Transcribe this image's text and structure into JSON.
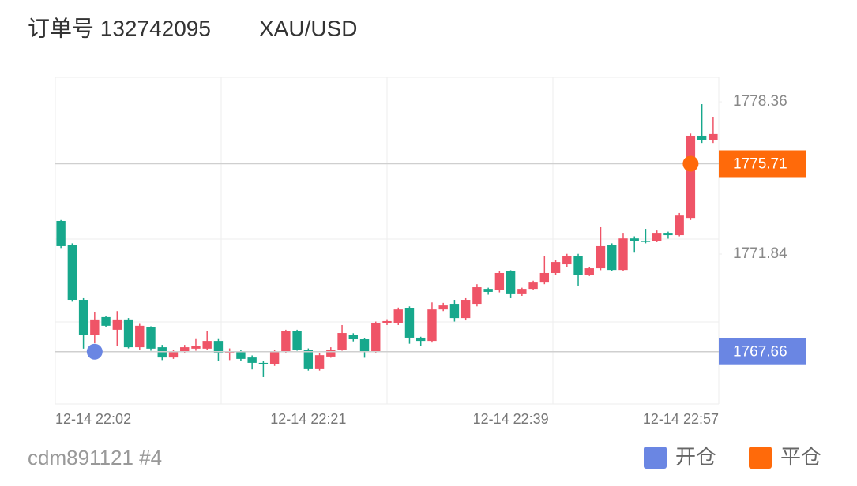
{
  "chart_data": {
    "type": "candlestick",
    "title": "订单号 132742095",
    "symbol": "XAU/USD",
    "footer": "cdm891121 #4",
    "categories": [
      "12-14 22:02",
      null,
      null,
      null,
      null,
      null,
      null,
      null,
      null,
      null,
      null,
      null,
      null,
      null,
      null,
      null,
      null,
      null,
      null,
      null,
      null,
      null,
      "12-14 22:21",
      null,
      null,
      null,
      null,
      null,
      null,
      null,
      null,
      null,
      null,
      null,
      null,
      null,
      null,
      null,
      null,
      null,
      "12-14 22:39",
      null,
      null,
      null,
      null,
      null,
      null,
      null,
      null,
      null,
      null,
      null,
      null,
      null,
      null,
      null,
      null,
      null,
      "12-14 22:57"
    ],
    "open": [
      1773.26,
      1772.24,
      1769.88,
      1768.36,
      1769.14,
      1768.6,
      1769.04,
      1767.85,
      1768.7,
      1767.85,
      1767.41,
      1767.68,
      1767.79,
      1767.79,
      1768.12,
      1767.62,
      1767.68,
      1767.41,
      1767.18,
      1767.11,
      1767.68,
      1768.53,
      1767.75,
      1766.91,
      1767.45,
      1767.75,
      1768.36,
      1768.19,
      1767.68,
      1768.87,
      1768.87,
      1769.54,
      1768.26,
      1768.12,
      1769.47,
      1769.71,
      1769.1,
      1769.71,
      1770.35,
      1770.29,
      1771.1,
      1770.12,
      1770.35,
      1770.62,
      1771.03,
      1771.4,
      1771.77,
      1770.96,
      1771.23,
      1772.24,
      1771.16,
      1772.51,
      1772.41,
      1772.41,
      1772.75,
      1772.65,
      1773.39,
      1776.91,
      1776.71
    ],
    "high": [
      1773.3,
      1772.3,
      1769.95,
      1769.37,
      1769.2,
      1769.4,
      1769.1,
      1768.85,
      1768.75,
      1767.95,
      1767.75,
      1767.95,
      1768.2,
      1768.53,
      1768.2,
      1767.8,
      1767.75,
      1767.5,
      1767.25,
      1767.75,
      1768.6,
      1768.6,
      1767.8,
      1767.6,
      1767.85,
      1768.8,
      1768.45,
      1768.25,
      1768.95,
      1769.05,
      1769.55,
      1769.6,
      1768.3,
      1769.77,
      1769.75,
      1769.88,
      1769.95,
      1770.55,
      1770.4,
      1771.1,
      1771.15,
      1770.4,
      1770.7,
      1771.74,
      1771.6,
      1771.85,
      1771.85,
      1771.3,
      1772.99,
      1772.3,
      1772.75,
      1772.6,
      1772.92,
      1772.85,
      1772.8,
      1773.6,
      1777.0,
      1778.26,
      1777.72
    ],
    "low": [
      1772.1,
      1769.8,
      1767.79,
      1768.02,
      1768.7,
      1767.9,
      1767.8,
      1767.75,
      1767.7,
      1767.3,
      1767.35,
      1767.6,
      1767.7,
      1767.75,
      1767.25,
      1767.3,
      1767.25,
      1766.9,
      1766.57,
      1767.05,
      1767.6,
      1767.7,
      1766.85,
      1766.85,
      1767.4,
      1767.7,
      1768.1,
      1767.4,
      1767.6,
      1768.8,
      1768.8,
      1768.0,
      1767.9,
      1768.05,
      1769.4,
      1768.95,
      1769.0,
      1769.6,
      1770.1,
      1770.2,
      1769.95,
      1770.05,
      1770.3,
      1770.55,
      1770.95,
      1771.3,
      1770.49,
      1770.9,
      1771.15,
      1771.1,
      1771.1,
      1771.9,
      1772.3,
      1772.35,
      1772.5,
      1772.6,
      1773.3,
      1776.6,
      1776.6
    ],
    "close": [
      1772.18,
      1769.88,
      1768.36,
      1769.04,
      1768.77,
      1769.04,
      1767.85,
      1768.77,
      1767.79,
      1767.41,
      1767.68,
      1767.85,
      1767.92,
      1768.12,
      1767.62,
      1767.68,
      1767.35,
      1767.18,
      1767.11,
      1767.68,
      1768.53,
      1767.75,
      1766.91,
      1767.51,
      1767.75,
      1768.46,
      1768.19,
      1767.68,
      1768.87,
      1768.97,
      1769.47,
      1768.26,
      1768.12,
      1769.47,
      1769.64,
      1769.1,
      1769.88,
      1770.42,
      1770.22,
      1771.03,
      1770.12,
      1770.35,
      1770.62,
      1771.03,
      1771.5,
      1771.77,
      1770.96,
      1771.23,
      1772.18,
      1771.16,
      1772.51,
      1772.41,
      1772.38,
      1772.75,
      1772.65,
      1773.49,
      1776.91,
      1776.74,
      1776.98
    ],
    "up_color": "#ef5467",
    "down_color": "#17a88c",
    "ylim": [
      1765.42,
      1779.41
    ],
    "yticks": [
      1778.36,
      1771.84
    ],
    "markers": [
      {
        "name": "开仓",
        "color": "#6a86e3",
        "index": 3,
        "value": 1767.66
      },
      {
        "name": "平仓",
        "color": "#ff6a0a",
        "index": 56,
        "value": 1775.71
      }
    ]
  }
}
